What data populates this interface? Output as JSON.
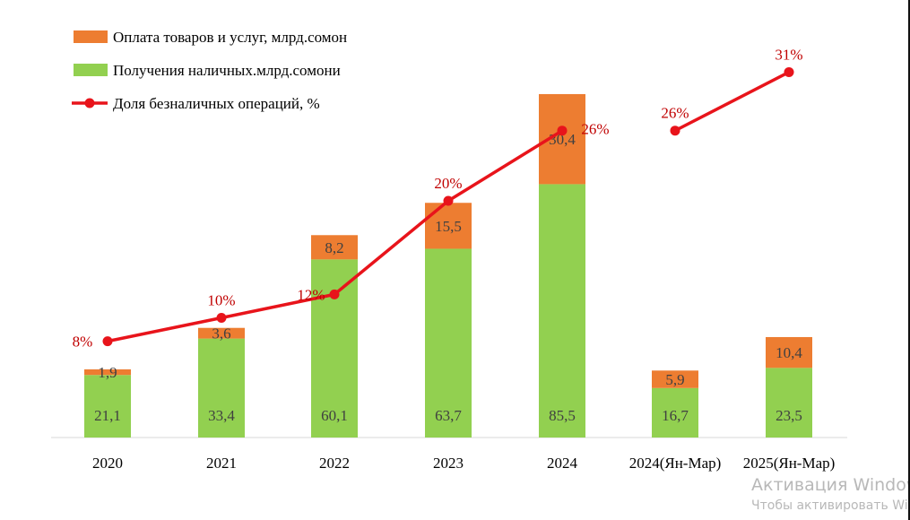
{
  "chart_data": {
    "type": "bar",
    "categories": [
      "2020",
      "2021",
      "2022",
      "2023",
      "2024",
      "2024(Ян-Мар)",
      "2025(Ян-Мар)"
    ],
    "series": [
      {
        "name": "Получения наличных.млрд.сомони",
        "color": "#92d050",
        "kind": "bar",
        "values": [
          21.1,
          33.4,
          60.1,
          63.7,
          85.5,
          16.7,
          23.5
        ],
        "labels": [
          "21,1",
          "33,4",
          "60,1",
          "63,7",
          "85,5",
          "16,7",
          "23,5"
        ]
      },
      {
        "name": "Оплата  товаров и услуг, млрд.сомон",
        "color": "#ed7d31",
        "kind": "bar",
        "values": [
          1.9,
          3.6,
          8.2,
          15.5,
          30.4,
          5.9,
          10.4
        ],
        "labels": [
          "1,9",
          "3,6",
          "8,2",
          "15,5",
          "30,4",
          "5,9",
          "10,4"
        ]
      },
      {
        "name": "Доля безналичных операций,  %",
        "color": "#e8141b",
        "kind": "line",
        "values": [
          8,
          10,
          12,
          20,
          26,
          26,
          31
        ],
        "labels": [
          "8%",
          "10%",
          "12%",
          "20%",
          "26%",
          "26%",
          "31%"
        ],
        "segments": [
          [
            0,
            4
          ],
          [
            5,
            6
          ]
        ]
      }
    ],
    "legend": [
      "Оплата  товаров и услуг, млрд.сомон",
      "Получения наличных.млрд.сомони",
      "Доля безналичных операций,  %"
    ],
    "legend_position": "top-left",
    "title": "",
    "xlabel": "",
    "ylabel": "",
    "grid": false
  },
  "watermark": {
    "line1": "Активация Windows",
    "line2": "Чтобы активировать Windows"
  }
}
